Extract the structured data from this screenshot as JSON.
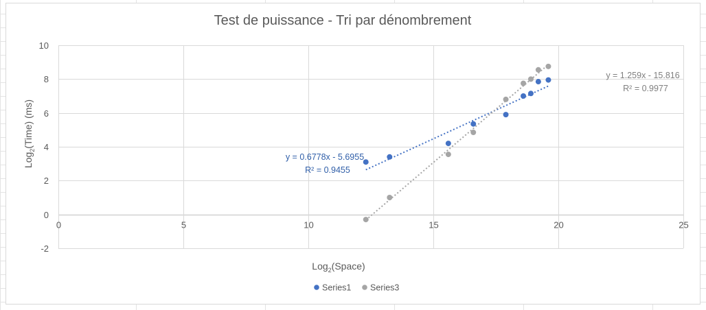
{
  "chart_data": {
    "type": "scatter",
    "title": "Test de puissance - Tri par dénombrement",
    "xlabel": {
      "main": "Log",
      "sub": "2",
      "rest": "(Space)"
    },
    "ylabel": {
      "main": "Log",
      "sub": "2",
      "rest": "(Time) (ms)"
    },
    "xlim": [
      0,
      25
    ],
    "ylim": [
      -2,
      10
    ],
    "xticks": [
      0,
      5,
      10,
      15,
      20,
      25
    ],
    "yticks": [
      -2,
      0,
      2,
      4,
      6,
      8,
      10
    ],
    "grid": true,
    "legend_position": "bottom",
    "series": [
      {
        "name": "Series1",
        "color": "#4472c4",
        "points": [
          [
            12.3,
            3.1
          ],
          [
            13.25,
            3.4
          ],
          [
            15.6,
            4.2
          ],
          [
            16.6,
            5.35
          ],
          [
            17.9,
            5.9
          ],
          [
            18.6,
            7.0
          ],
          [
            18.9,
            7.15
          ],
          [
            19.2,
            7.85
          ],
          [
            19.6,
            7.95
          ]
        ],
        "trendline": {
          "slope": 0.6778,
          "intercept": -5.6955,
          "x_range": [
            12.3,
            19.6
          ]
        },
        "equation": "y = 0.6778x - 5.6955",
        "r2": "R² = 0.9455"
      },
      {
        "name": "Series3",
        "color": "#a5a5a5",
        "points": [
          [
            12.3,
            -0.3
          ],
          [
            13.25,
            1.0
          ],
          [
            15.6,
            3.55
          ],
          [
            16.6,
            4.85
          ],
          [
            17.9,
            6.8
          ],
          [
            18.6,
            7.75
          ],
          [
            18.9,
            8.0
          ],
          [
            19.2,
            8.55
          ],
          [
            19.6,
            8.75
          ]
        ],
        "trendline": {
          "slope": 1.259,
          "intercept": -15.816,
          "x_range": [
            12.3,
            19.6
          ]
        },
        "equation": "y = 1.259x - 15.816",
        "r2": "R² = 0.9977"
      }
    ]
  }
}
